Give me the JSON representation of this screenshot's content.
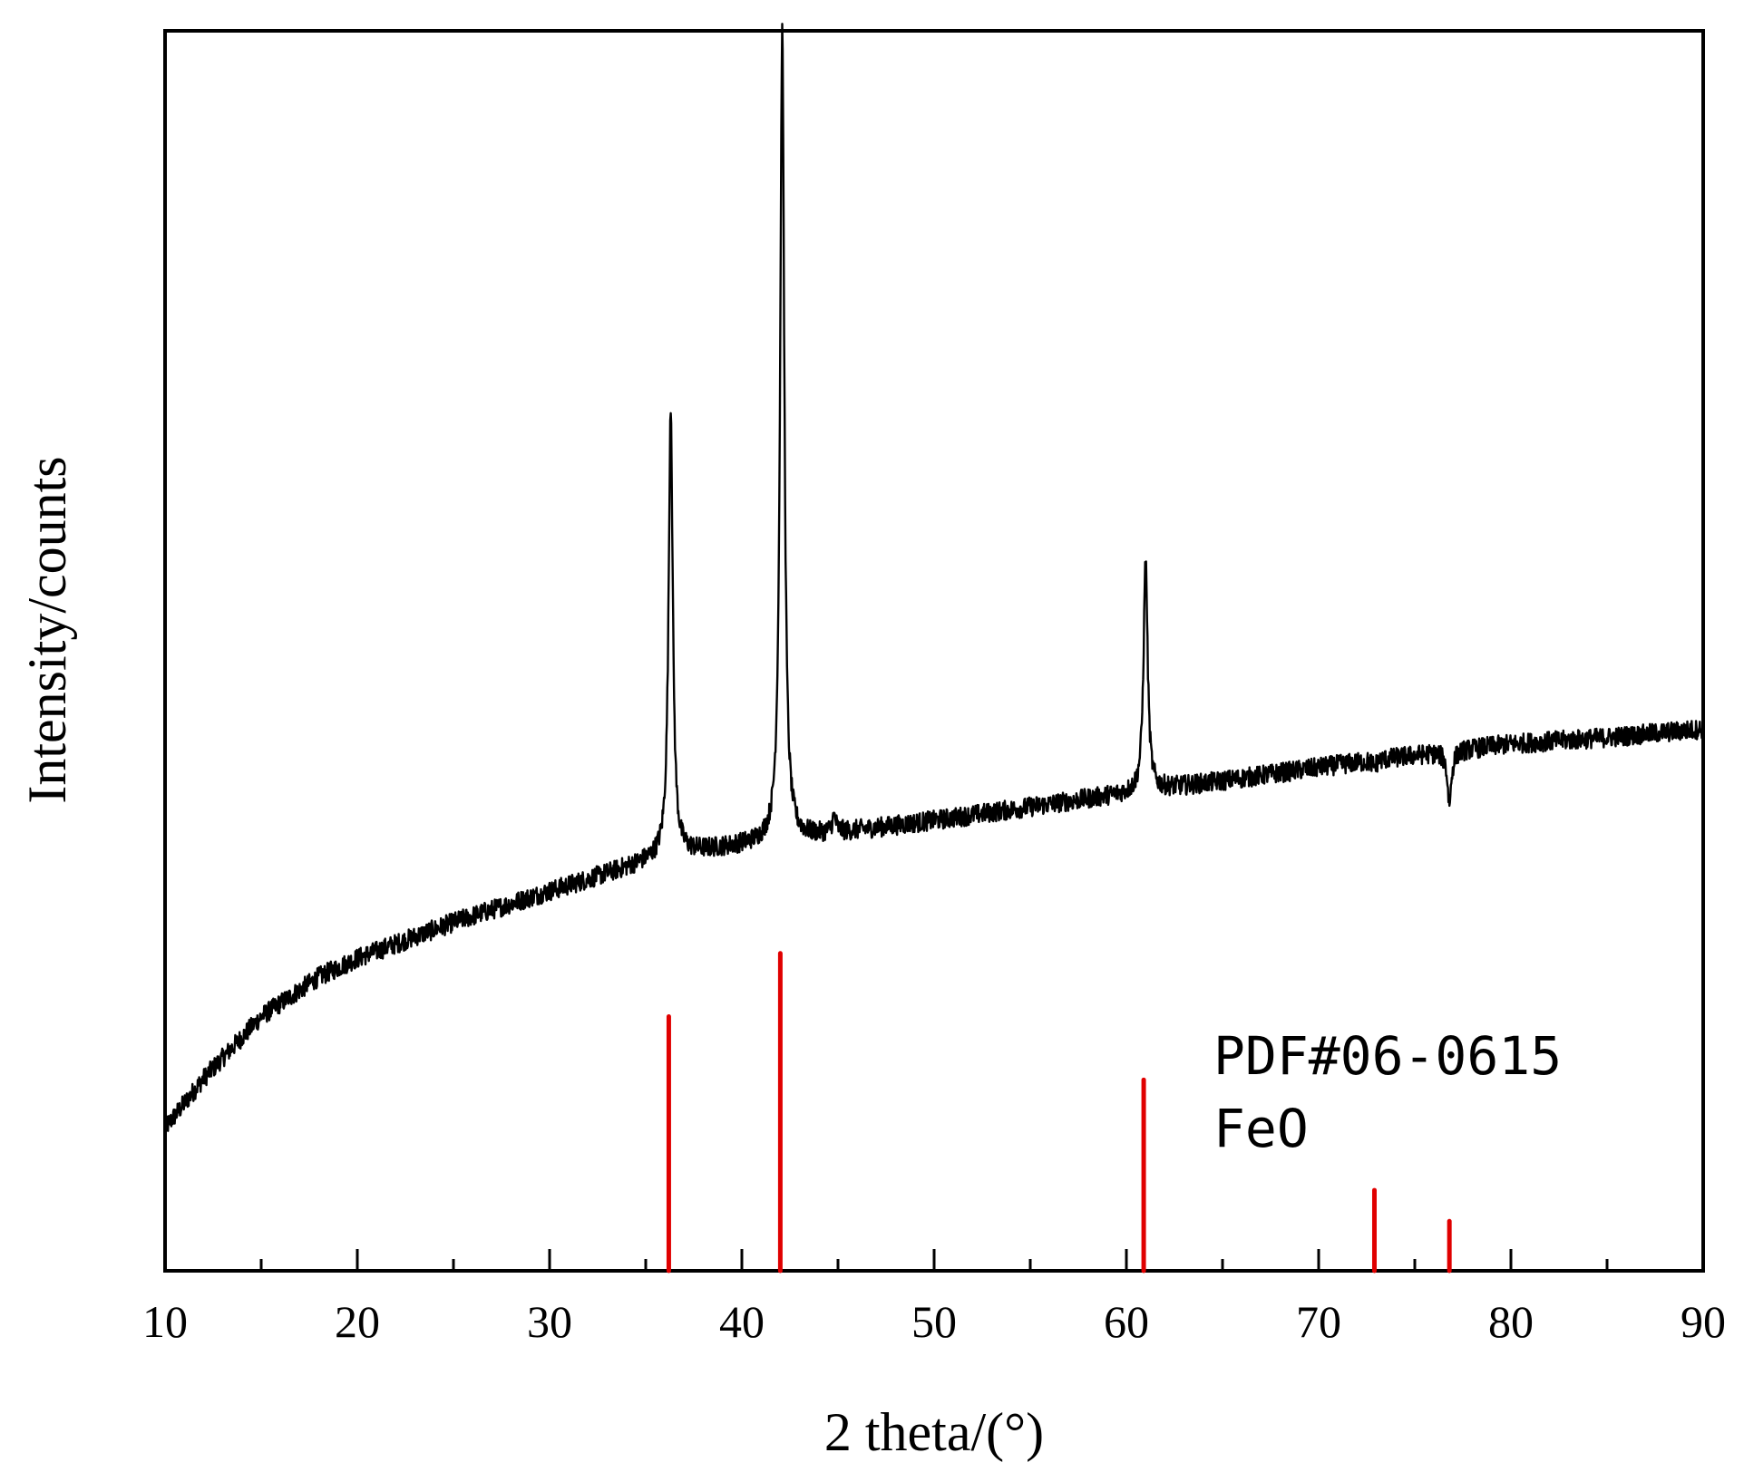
{
  "chart_data": {
    "type": "line",
    "xlabel": "2 theta/(°)",
    "ylabel": "Intensity/counts",
    "xlim": [
      10,
      90
    ],
    "x_ticks": [
      "10",
      "20",
      "30",
      "40",
      "50",
      "60",
      "70",
      "80",
      "90"
    ],
    "x_minor_step": 5,
    "y_ticks_shown": false,
    "grid": false,
    "colors": {
      "pattern": "#000000",
      "reference": "#e00000",
      "frame": "#000000"
    },
    "series": [
      {
        "role": "measured-pattern",
        "baseline": [
          [
            10,
            0.115
          ],
          [
            12,
            0.155
          ],
          [
            15,
            0.205
          ],
          [
            18,
            0.237
          ],
          [
            20,
            0.252
          ],
          [
            25,
            0.281
          ],
          [
            30,
            0.306
          ],
          [
            35,
            0.33
          ],
          [
            36,
            0.335
          ],
          [
            40,
            0.343
          ],
          [
            45,
            0.353
          ],
          [
            50,
            0.363
          ],
          [
            55,
            0.374
          ],
          [
            60,
            0.385
          ],
          [
            65,
            0.395
          ],
          [
            70,
            0.406
          ],
          [
            75,
            0.416
          ],
          [
            80,
            0.425
          ],
          [
            85,
            0.43
          ],
          [
            90,
            0.437
          ]
        ],
        "peaks": [
          {
            "x": 36.3,
            "y": 0.698
          },
          {
            "x": 42.1,
            "y": 1.0
          },
          {
            "x": 44.8,
            "y": 0.365
          },
          {
            "x": 61.0,
            "y": 0.573
          },
          {
            "x": 72.9,
            "y": 0.407
          },
          {
            "x": 76.8,
            "y": 0.378
          }
        ]
      }
    ],
    "reference": {
      "label_line1": "PDF#06-0615",
      "label_line2": "FeO",
      "sticks": [
        {
          "x": 36.2,
          "y": 0.205
        },
        {
          "x": 42.0,
          "y": 0.256
        },
        {
          "x": 60.9,
          "y": 0.154
        },
        {
          "x": 72.9,
          "y": 0.065
        },
        {
          "x": 76.8,
          "y": 0.04
        }
      ]
    }
  }
}
